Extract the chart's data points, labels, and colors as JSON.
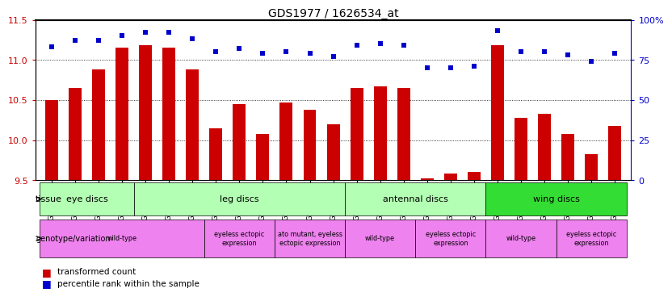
{
  "title": "GDS1977 / 1626534_at",
  "samples": [
    "GSM91570",
    "GSM91585",
    "GSM91609",
    "GSM91616",
    "GSM91617",
    "GSM91618",
    "GSM91619",
    "GSM91478",
    "GSM91479",
    "GSM91480",
    "GSM91472",
    "GSM91473",
    "GSM91474",
    "GSM91484",
    "GSM91491",
    "GSM91515",
    "GSM91475",
    "GSM91476",
    "GSM91477",
    "GSM91620",
    "GSM91621",
    "GSM91622",
    "GSM91481",
    "GSM91482",
    "GSM91483"
  ],
  "bar_values": [
    10.5,
    10.65,
    10.88,
    11.15,
    11.18,
    11.15,
    10.88,
    10.15,
    10.45,
    10.08,
    10.47,
    10.38,
    10.2,
    10.65,
    10.67,
    10.65,
    9.52,
    9.58,
    9.6,
    11.18,
    10.28,
    10.33,
    10.08,
    9.82,
    10.18
  ],
  "blue_values": [
    83,
    87,
    87,
    90,
    92,
    92,
    88,
    80,
    82,
    79,
    80,
    79,
    77,
    84,
    85,
    84,
    70,
    70,
    71,
    93,
    80,
    80,
    78,
    74,
    79
  ],
  "ylim_left": [
    9.5,
    11.5
  ],
  "ylim_right": [
    0,
    100
  ],
  "yticks_left": [
    9.5,
    10.0,
    10.5,
    11.0,
    11.5
  ],
  "yticks_right": [
    0,
    25,
    50,
    75,
    100
  ],
  "ytick_labels_right": [
    "0",
    "25",
    "50",
    "75",
    "100%"
  ],
  "bar_color": "#cc0000",
  "blue_color": "#0000cc",
  "hline_vals": [
    10.0,
    10.5,
    11.0
  ],
  "tissue_groups": [
    {
      "label": "eye discs",
      "start": 0,
      "end": 4,
      "color": "#b3ffb3"
    },
    {
      "label": "leg discs",
      "start": 4,
      "end": 13,
      "color": "#b3ffb3"
    },
    {
      "label": "antennal discs",
      "start": 13,
      "end": 19,
      "color": "#b3ffb3"
    },
    {
      "label": "wing discs",
      "start": 19,
      "end": 25,
      "color": "#33dd33"
    }
  ],
  "genotype_groups": [
    {
      "label": "wild-type",
      "start": 0,
      "end": 7
    },
    {
      "label": "eyeless ectopic\nexpression",
      "start": 7,
      "end": 10
    },
    {
      "label": "ato mutant, eyeless\nectopic expression",
      "start": 10,
      "end": 13
    },
    {
      "label": "wild-type",
      "start": 13,
      "end": 16
    },
    {
      "label": "eyeless ectopic\nexpression",
      "start": 16,
      "end": 19
    },
    {
      "label": "wild-type",
      "start": 19,
      "end": 22
    },
    {
      "label": "eyeless ectopic\nexpression",
      "start": 22,
      "end": 25
    }
  ],
  "geno_color": "#ee82ee",
  "tissue_label": "tissue",
  "geno_label": "genotype/variation",
  "legend_bar": "transformed count",
  "legend_blue": "percentile rank within the sample"
}
